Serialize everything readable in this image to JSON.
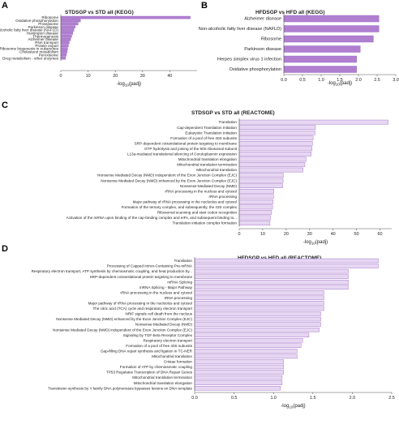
{
  "chart_data": [
    {
      "panel": "A",
      "type": "bar",
      "orientation": "horizontal",
      "title": "STDSGP vs STD all (KEGG)",
      "xlabel": "-log10(padj)",
      "xlim": [
        0,
        50
      ],
      "xticks": [
        0,
        10,
        20,
        30,
        40
      ],
      "categories": [
        "Ribosome",
        "Oxidative phosphorylation",
        "Proteasome",
        "Parkinson disease",
        "Non-alcoholic fatty liver disease (NAFLD)",
        "Huntington disease",
        "Thermogenesis",
        "Alzheimer disease",
        "RNA transport",
        "Protein export",
        "Ribosome biogenesis in eukaryotes",
        "Cholesterol metabolism",
        "Peroxisome",
        "Drug metabolism - other enzymes"
      ],
      "values": [
        47.5,
        7.2,
        6.3,
        5.3,
        4.8,
        4.4,
        4.0,
        3.6,
        3.1,
        2.8,
        2.5,
        2.3,
        2.0,
        1.7
      ]
    },
    {
      "panel": "B",
      "type": "bar",
      "orientation": "horizontal",
      "title": "HFDSGP vs HFD all (KEGG)",
      "xlabel": "-log10(padj)",
      "xlim": [
        0,
        3.0
      ],
      "xticks": [
        0.0,
        0.5,
        1.0,
        1.5,
        2.0,
        2.5,
        3.0
      ],
      "categories": [
        "Alzheimer disease",
        "Non-alcoholic fatty liver disease (NAFLD)",
        "Ribosome",
        "Parkinson disease",
        "Herpes simplex virus 1 infection",
        "Oxidative phosphorylation"
      ],
      "values": [
        2.55,
        2.55,
        2.4,
        2.05,
        1.95,
        1.95
      ]
    },
    {
      "panel": "C",
      "type": "bar",
      "orientation": "horizontal",
      "title": "STDSGP vs STD all (REACTOME)",
      "xlabel": "-log10(padj)",
      "xlim": [
        0,
        65
      ],
      "xticks": [
        0,
        10,
        20,
        30,
        40,
        50,
        60
      ],
      "categories": [
        "Translation",
        "Cap-dependent Translation Initiation",
        "Eukaryotic Translation Initiation",
        "Formation of a pool of free 40S subunits",
        "SRP-dependent cotranslational protein targeting to membrane",
        "GTP hydrolysis and joining of the 60S ribosomal subunit",
        "L13a-mediated translational silencing of Ceruloplasmin expression",
        "Mitochondrial translation elongation",
        "Mitochondrial translation termination",
        "Mitochondrial translation",
        "Nonsense Mediated Decay (NMD) independent of the Exon Junction Complex (EJC)",
        "Nonsense Mediated Decay (NMD) enhanced by the Exon Junction Complex (EJC)",
        "Nonsense-Mediated Decay (NMD)",
        "rRNA processing in the nucleus and cytosol",
        "rRNA processing",
        "Major pathway of rRNA processing in the nucleolus and cytosol",
        "Formation of the ternary complex, and subsequently, the 43S complex",
        "Ribosomal scanning and start codon recognition",
        "Activation of the mRNA upon binding of the cap-binding complex and eIFs, and subsequent binding to...",
        "Translation initiation complex formation"
      ],
      "values": [
        63.5,
        32.5,
        32.3,
        31.5,
        31.2,
        31.0,
        30.7,
        28.5,
        28.0,
        27.2,
        18.8,
        18.7,
        18.5,
        14.8,
        14.6,
        14.4,
        14.2,
        13.8,
        13.3,
        13.1
      ]
    },
    {
      "panel": "D",
      "type": "bar",
      "orientation": "horizontal",
      "title": "HFDSGP vs HFD all (REACTOME)",
      "xlabel": "-log10(padj)",
      "xlim": [
        0,
        2.5
      ],
      "xticks": [
        0.0,
        0.5,
        1.0,
        1.5,
        2.0,
        2.5
      ],
      "categories": [
        "Translation",
        "Processing of Capped Intron-Containing Pre-mRNA",
        "Respiratory electron transport, ATP synthesis by chemiosmotic coupling, and heat production by...",
        "SRP-dependent cotranslational protein targeting to membrane",
        "mRNA Splicing",
        "mRNA Splicing - Major Pathway",
        "rRNA processing in the nucleus and cytosol",
        "rRNA processing",
        "Major pathway of rRNA processing in the nucleolus and cytosol",
        "The citric acid (TCA) cycle and respiratory electron transport",
        "NRIF signals cell death from the nucleus",
        "Nonsense Mediated Decay (NMD) enhanced by the Exon Junction Complex (EJC)",
        "Nonsense-Mediated Decay (NMD)",
        "Nonsense Mediated Decay (NMD) independent of the Exon Junction Complex (EJC)",
        "Signaling by TGF-beta Receptor Complex",
        "Respiratory electron transport",
        "Formation of a pool of free 40S subunits",
        "Gap-filling DNA repair synthesis and ligation in TC-NER",
        "Mitochondrial translation",
        "Cristae formation",
        "Formation of ATP by chemiosmotic coupling",
        "TP53 Regulates Transcription of DNA Repair Genes",
        "Mitochondrial translation termination",
        "Mitochondrial translation elongation",
        "Translesion synthesis by Y family DNA polymerases bypasses lesions on DNA template"
      ],
      "values": [
        2.33,
        2.33,
        1.95,
        1.95,
        1.95,
        1.95,
        1.64,
        1.64,
        1.64,
        1.64,
        1.6,
        1.6,
        1.6,
        1.58,
        1.45,
        1.37,
        1.35,
        1.3,
        1.3,
        1.13,
        1.13,
        1.13,
        1.11,
        1.11,
        1.09
      ]
    }
  ],
  "colors": {
    "bar_fill_strong": "#b07fd0",
    "bar_fill_light": "#e6d6f2",
    "bar_stroke": "#9a63c0",
    "axis": "#555555"
  }
}
